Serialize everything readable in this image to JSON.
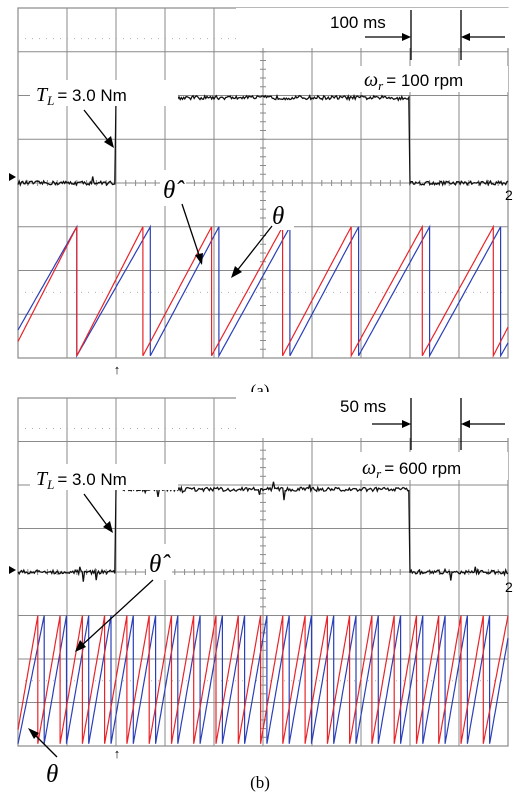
{
  "chart_data": [
    {
      "type": "line",
      "caption": "(a)",
      "time_marker": "100 ms",
      "speed_label": "ω",
      "speed_sub": "r",
      "speed_value": "= 100 rpm",
      "torque_label": "T",
      "torque_sub": "L",
      "torque_value": "= 3.0 Nm",
      "theta_hat_label": "θ̂",
      "theta_label": "θ",
      "channel_marker": "2",
      "grid": true,
      "divisions": {
        "x": 10,
        "y": 8
      },
      "torque_step": {
        "on_div": 2.0,
        "off_div": 8.0,
        "low_level_div": 4.0,
        "high_level_div": 5.95
      },
      "position_cycles": {
        "estimated_resets_div": [
          1.2,
          2.55,
          3.95,
          5.4,
          6.8,
          8.25,
          9.7
        ],
        "actual_resets_div": [
          1.2,
          2.7,
          4.1,
          5.55,
          6.95,
          8.4,
          9.85
        ]
      }
    },
    {
      "type": "line",
      "caption": "(b)",
      "time_marker": "50 ms",
      "speed_label": "ω",
      "speed_sub": "r",
      "speed_value": "= 600 rpm",
      "torque_label": "T",
      "torque_sub": "L",
      "torque_value": "= 3.0 Nm",
      "theta_hat_label": "θ̂",
      "theta_label": "θ",
      "channel_marker": "2",
      "grid": true,
      "divisions": {
        "x": 10,
        "y": 8
      },
      "torque_step": {
        "on_div": 2.0,
        "off_div": 8.0,
        "low_level_div": 4.0,
        "high_level_div": 5.9
      },
      "position_cycles": {
        "cycle_count": 22
      }
    }
  ],
  "colors": {
    "trace_torque": "#111111",
    "trace_estimated": "#e8242a",
    "trace_actual": "#2a3fb8",
    "grid": "#8a8a8a"
  }
}
